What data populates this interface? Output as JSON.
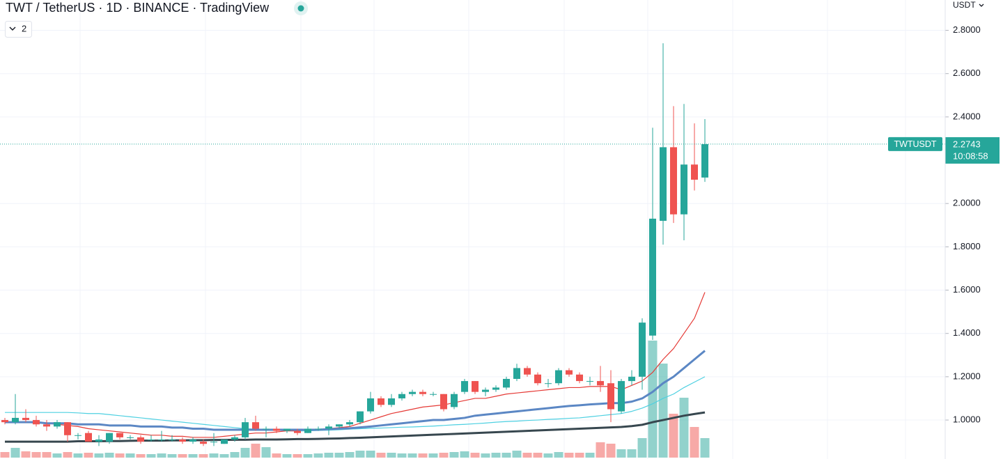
{
  "chart_data": {
    "type": "candlestick",
    "title": "TWT / TetherUS · 1D · BINANCE · TradingView",
    "interval_button": "2",
    "currency": "USDT",
    "symbol": "TWTUSDT",
    "countdown": "10:08:58",
    "ylim": [
      0.82,
      2.94
    ],
    "yticks": [
      {
        "value": 1.0,
        "label": "1.0000"
      },
      {
        "value": 1.2,
        "label": "1.2000"
      },
      {
        "value": 1.4,
        "label": "1.4000"
      },
      {
        "value": 1.6,
        "label": "1.6000"
      },
      {
        "value": 1.8,
        "label": "1.8000"
      },
      {
        "value": 2.0,
        "label": "2.0000"
      },
      {
        "value": 2.4,
        "label": "2.4000"
      },
      {
        "value": 2.6,
        "label": "2.6000"
      },
      {
        "value": 2.8,
        "label": "2.8000"
      }
    ],
    "grid": true,
    "up_color": "#26a69a",
    "down_color": "#ef5350",
    "open": [
      1.0,
      0.99,
      1.01,
      1.0,
      0.98,
      0.97,
      0.99,
      0.93,
      0.94,
      0.9,
      0.9,
      0.94,
      0.92,
      0.92,
      0.91,
      0.91,
      0.91,
      0.91,
      0.9,
      0.9,
      0.9,
      0.89,
      0.91,
      0.92,
      0.99,
      0.96,
      0.96,
      0.95,
      0.95,
      0.94,
      0.96,
      0.96,
      0.97,
      0.98,
      0.99,
      1.04,
      1.1,
      1.07,
      1.1,
      1.12,
      1.13,
      1.12,
      1.12,
      1.06,
      1.13,
      1.18,
      1.13,
      1.14,
      1.15,
      1.19,
      1.24,
      1.21,
      1.17,
      1.17,
      1.23,
      1.21,
      1.18,
      1.18,
      1.17,
      1.04,
      1.18,
      1.2,
      1.39,
      1.92,
      2.26,
      1.95,
      2.18,
      2.12
    ],
    "high": [
      1.01,
      1.12,
      1.05,
      1.02,
      1.0,
      1.0,
      0.99,
      0.94,
      0.95,
      0.93,
      0.94,
      0.94,
      0.93,
      0.93,
      0.93,
      0.95,
      0.93,
      0.92,
      0.92,
      0.91,
      0.94,
      0.91,
      0.93,
      1.01,
      1.02,
      0.97,
      0.97,
      0.96,
      0.96,
      0.97,
      0.97,
      0.98,
      0.98,
      1.0,
      1.04,
      1.13,
      1.11,
      1.12,
      1.13,
      1.14,
      1.14,
      1.13,
      1.12,
      1.13,
      1.19,
      1.18,
      1.15,
      1.16,
      1.2,
      1.26,
      1.25,
      1.22,
      1.19,
      1.24,
      1.24,
      1.22,
      1.2,
      1.25,
      1.23,
      1.19,
      1.23,
      1.47,
      2.35,
      2.74,
      2.45,
      2.46,
      2.37,
      2.39
    ],
    "low": [
      0.98,
      0.98,
      0.99,
      0.97,
      0.95,
      0.96,
      0.9,
      0.91,
      0.9,
      0.88,
      0.89,
      0.91,
      0.91,
      0.89,
      0.9,
      0.9,
      0.9,
      0.89,
      0.89,
      0.88,
      0.88,
      0.89,
      0.9,
      0.91,
      0.95,
      0.92,
      0.94,
      0.94,
      0.93,
      0.94,
      0.95,
      0.93,
      0.96,
      0.97,
      0.98,
      1.03,
      1.06,
      1.06,
      1.09,
      1.11,
      1.11,
      1.11,
      1.04,
      1.05,
      1.12,
      1.12,
      1.11,
      1.13,
      1.14,
      1.18,
      1.2,
      1.16,
      1.15,
      1.16,
      1.2,
      1.17,
      1.16,
      1.13,
      0.99,
      1.03,
      1.16,
      1.14,
      1.37,
      1.81,
      1.91,
      1.83,
      2.06,
      2.1
    ],
    "close": [
      0.99,
      1.01,
      1.0,
      0.98,
      0.97,
      0.99,
      0.93,
      0.93,
      0.9,
      0.91,
      0.94,
      0.92,
      0.92,
      0.9,
      0.91,
      0.91,
      0.91,
      0.9,
      0.91,
      0.89,
      0.9,
      0.91,
      0.92,
      0.99,
      0.96,
      0.96,
      0.95,
      0.96,
      0.94,
      0.96,
      0.96,
      0.97,
      0.98,
      0.99,
      1.04,
      1.1,
      1.07,
      1.1,
      1.12,
      1.13,
      1.12,
      1.12,
      1.05,
      1.12,
      1.18,
      1.13,
      1.14,
      1.15,
      1.19,
      1.24,
      1.21,
      1.17,
      1.17,
      1.23,
      1.21,
      1.18,
      1.18,
      1.16,
      1.05,
      1.18,
      1.2,
      1.45,
      1.93,
      2.26,
      1.95,
      2.18,
      2.11,
      2.2743
    ],
    "volume": [
      8,
      14,
      9,
      8,
      8,
      6,
      8,
      6,
      7,
      6,
      7,
      6,
      6,
      5,
      5,
      6,
      5,
      5,
      5,
      5,
      6,
      5,
      8,
      14,
      20,
      15,
      6,
      5,
      5,
      5,
      6,
      7,
      7,
      8,
      10,
      10,
      7,
      7,
      6,
      6,
      6,
      6,
      7,
      8,
      9,
      7,
      6,
      7,
      7,
      10,
      7,
      7,
      6,
      8,
      7,
      7,
      7,
      22,
      20,
      12,
      12,
      28,
      168,
      135,
      63,
      86,
      44,
      28
    ],
    "moving_averages": [
      {
        "color": "#4dd0e1",
        "values": [
          1.035,
          1.035,
          1.035,
          1.035,
          1.035,
          1.035,
          1.035,
          1.033,
          1.03,
          1.03,
          1.025,
          1.02,
          1.015,
          1.01,
          1.005,
          1.0,
          0.995,
          0.99,
          0.985,
          0.98,
          0.975,
          0.97,
          0.965,
          0.96,
          0.958,
          0.955,
          0.953,
          0.95,
          0.95,
          0.95,
          0.952,
          0.953,
          0.955,
          0.958,
          0.96,
          0.962,
          0.963,
          0.965,
          0.967,
          0.968,
          0.97,
          0.972,
          0.975,
          0.978,
          0.98,
          0.983,
          0.986,
          0.99,
          0.993,
          0.995,
          0.998,
          1.0,
          1.003,
          1.005,
          1.008,
          1.01,
          1.015,
          1.02,
          1.025,
          1.03,
          1.04,
          1.055,
          1.075,
          1.1,
          1.12,
          1.15,
          1.175,
          1.2
        ]
      },
      {
        "color": "#e53935",
        "values": [
          0.99,
          0.99,
          0.99,
          0.985,
          0.985,
          0.98,
          0.975,
          0.97,
          0.96,
          0.955,
          0.95,
          0.945,
          0.94,
          0.935,
          0.93,
          0.93,
          0.925,
          0.925,
          0.92,
          0.92,
          0.92,
          0.925,
          0.93,
          0.935,
          0.94,
          0.94,
          0.945,
          0.95,
          0.95,
          0.955,
          0.955,
          0.96,
          0.965,
          0.97,
          0.985,
          1.0,
          1.015,
          1.03,
          1.04,
          1.05,
          1.06,
          1.065,
          1.07,
          1.08,
          1.09,
          1.1,
          1.1,
          1.11,
          1.12,
          1.125,
          1.13,
          1.135,
          1.14,
          1.145,
          1.15,
          1.15,
          1.155,
          1.155,
          1.155,
          1.14,
          1.16,
          1.18,
          1.22,
          1.28,
          1.33,
          1.4,
          1.47,
          1.59
        ]
      },
      {
        "color": "#5b87c4",
        "values": [
          0.99,
          0.99,
          0.99,
          0.99,
          0.985,
          0.985,
          0.985,
          0.98,
          0.98,
          0.98,
          0.975,
          0.975,
          0.975,
          0.97,
          0.97,
          0.97,
          0.965,
          0.965,
          0.96,
          0.96,
          0.955,
          0.955,
          0.955,
          0.955,
          0.955,
          0.955,
          0.955,
          0.955,
          0.955,
          0.955,
          0.955,
          0.958,
          0.96,
          0.962,
          0.966,
          0.97,
          0.975,
          0.98,
          0.985,
          0.99,
          0.995,
          1.0,
          1.0,
          1.005,
          1.01,
          1.02,
          1.025,
          1.03,
          1.035,
          1.04,
          1.045,
          1.05,
          1.055,
          1.06,
          1.065,
          1.068,
          1.072,
          1.075,
          1.078,
          1.078,
          1.085,
          1.1,
          1.13,
          1.17,
          1.2,
          1.24,
          1.28,
          1.32
        ]
      },
      {
        "color": "#37474f",
        "values": [
          0.9,
          0.9,
          0.9,
          0.9,
          0.9,
          0.9,
          0.9,
          0.902,
          0.902,
          0.902,
          0.903,
          0.903,
          0.904,
          0.905,
          0.905,
          0.905,
          0.906,
          0.906,
          0.907,
          0.907,
          0.908,
          0.908,
          0.909,
          0.909,
          0.91,
          0.91,
          0.91,
          0.911,
          0.912,
          0.912,
          0.913,
          0.914,
          0.915,
          0.917,
          0.918,
          0.92,
          0.922,
          0.924,
          0.926,
          0.928,
          0.93,
          0.932,
          0.934,
          0.936,
          0.938,
          0.94,
          0.942,
          0.944,
          0.946,
          0.948,
          0.95,
          0.952,
          0.954,
          0.956,
          0.958,
          0.96,
          0.962,
          0.964,
          0.966,
          0.968,
          0.972,
          0.978,
          0.99,
          1.0,
          1.01,
          1.02,
          1.028,
          1.035
        ]
      }
    ]
  }
}
